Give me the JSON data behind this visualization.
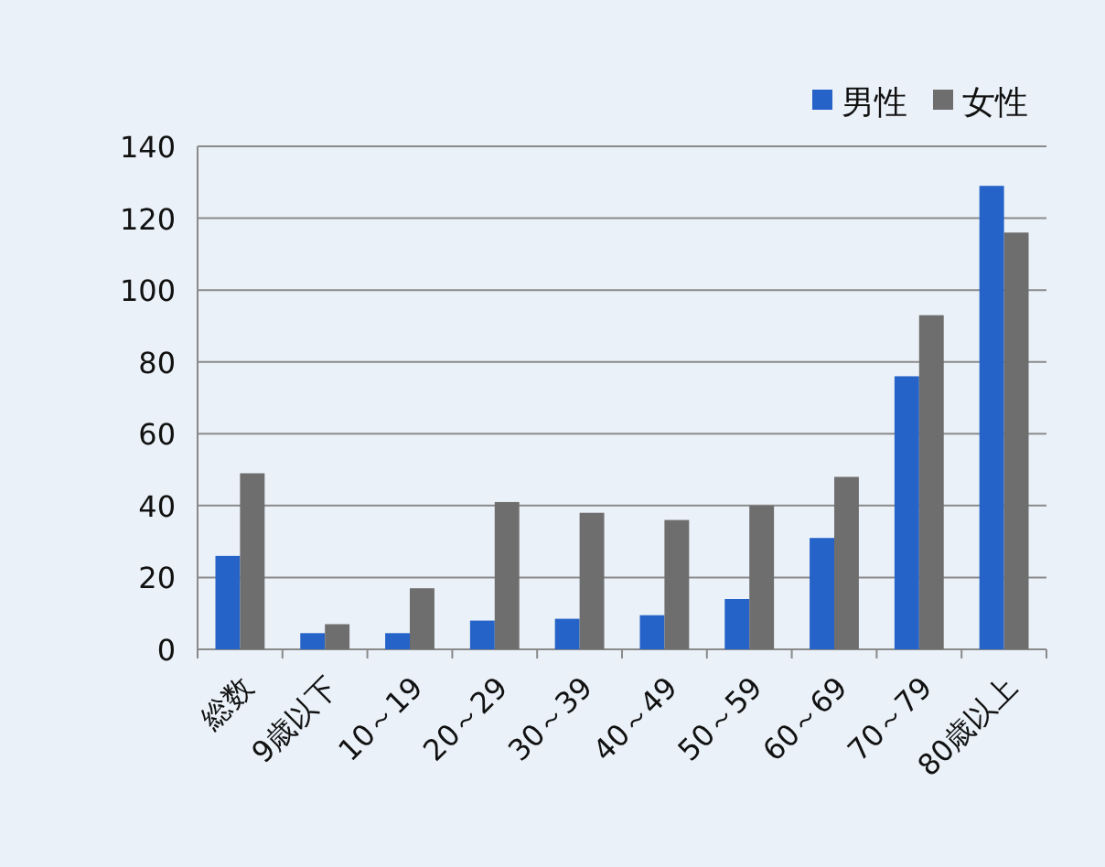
{
  "chart_data": {
    "type": "bar",
    "categories": [
      "総数",
      "9歳以下",
      "10～19",
      "20～29",
      "30～39",
      "40～49",
      "50～59",
      "60～69",
      "70～79",
      "80歳以上"
    ],
    "series": [
      {
        "name": "男性",
        "color": "#2563c8",
        "values": [
          26,
          4.5,
          4.5,
          8,
          8.5,
          9.5,
          14,
          31,
          76,
          129
        ]
      },
      {
        "name": "女性",
        "color": "#6e6e6e",
        "values": [
          49,
          7,
          17,
          41,
          38,
          36,
          40,
          48,
          93,
          116
        ]
      }
    ],
    "ylim": [
      0,
      140
    ],
    "yticks": [
      0,
      20,
      40,
      60,
      80,
      100,
      120,
      140
    ],
    "grid": "y",
    "legend": "top right"
  }
}
